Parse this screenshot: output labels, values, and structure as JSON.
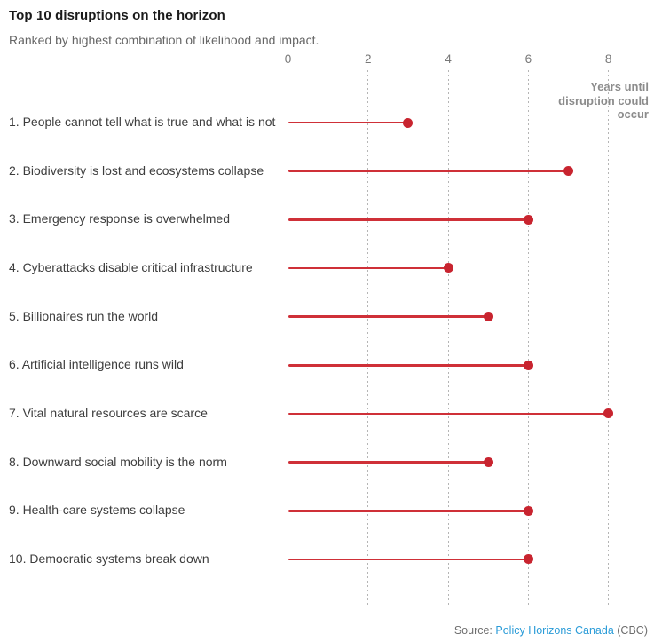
{
  "header": {
    "title": "Top 10 disruptions on the horizon",
    "subtitle": "Ranked by highest combination of likelihood and impact."
  },
  "chart_data": {
    "type": "lollipop",
    "title": "Top 10 disruptions on the horizon",
    "subtitle": "Ranked by highest combination of likelihood and impact.",
    "categories": [
      "1. People cannot tell what is true and what is not",
      "2. Biodiversity is lost and ecosystems collapse",
      "3. Emergency response is overwhelmed",
      "4. Cyberattacks disable critical infrastructure",
      "5. Billionaires run the world",
      "6. Artificial intelligence runs wild",
      "7. Vital natural resources are scarce",
      "8. Downward social mobility is the norm",
      "9. Health-care systems collapse",
      "10. Democratic systems break down"
    ],
    "values": [
      3,
      7,
      6,
      4,
      5,
      6,
      8,
      5,
      6,
      6
    ],
    "x_ticks": [
      "0",
      "2",
      "4",
      "6",
      "8"
    ],
    "xlim": [
      0,
      8
    ],
    "xlabel": "Years until\ndisruption could\noccur",
    "ylabel": "",
    "grid": "dotted-vertical",
    "legend": "none"
  },
  "colors": {
    "accent_red": "#c8242f",
    "line_red": "#cf3038",
    "grid_gray": "#b5b5b5",
    "link_blue": "#2b9cd8",
    "text_dark": "#3d3d3d",
    "muted_gray": "#6e6e6e"
  },
  "footer": {
    "prefix": "Source: ",
    "link_text": "Policy Horizons Canada",
    "suffix": " (CBC)"
  }
}
